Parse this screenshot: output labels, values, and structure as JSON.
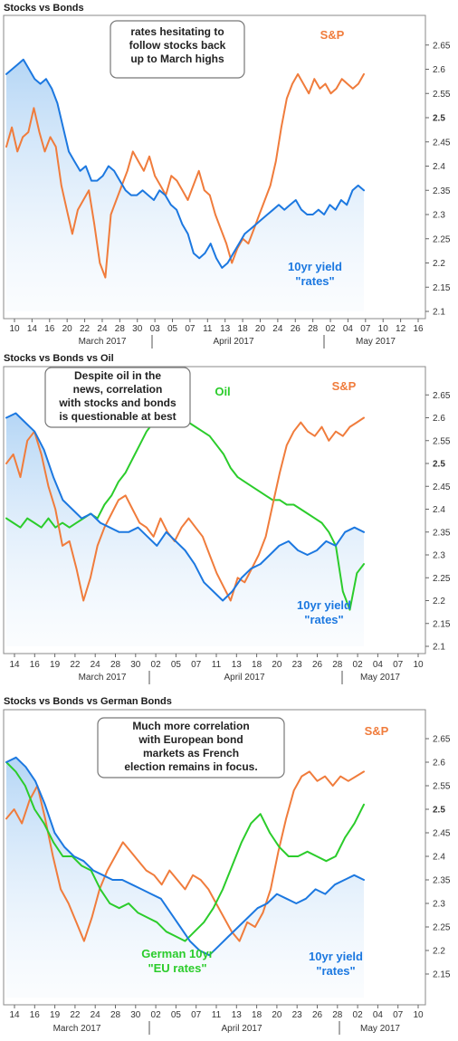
{
  "chart_data": [
    {
      "type": "line",
      "title": "Stocks vs Bonds",
      "ylim": [
        2.1,
        2.7
      ],
      "yticks": [
        "2.1",
        "2.15",
        "2.2",
        "2.25",
        "2.3",
        "2.35",
        "2.4",
        "2.45",
        "2.5",
        "2.55",
        "2.6",
        "2.65"
      ],
      "bold_ytick": "2.5",
      "xticks": [
        "10",
        "14",
        "16",
        "20",
        "22",
        "24",
        "28",
        "30",
        "03",
        "05",
        "07",
        "11",
        "13",
        "18",
        "20",
        "24",
        "26",
        "28",
        "02",
        "04",
        "07",
        "10",
        "12",
        "16"
      ],
      "months": [
        "March 2017",
        "April 2017",
        "May 2017"
      ],
      "annotation": [
        "rates hesitating to",
        "follow stocks back",
        "up to March highs"
      ],
      "series": [
        {
          "name": "S&P",
          "color": "#f07c3c",
          "label": [
            "S&P"
          ],
          "values": [
            2.44,
            2.48,
            2.43,
            2.46,
            2.47,
            2.52,
            2.47,
            2.43,
            2.46,
            2.44,
            2.36,
            2.31,
            2.26,
            2.31,
            2.33,
            2.35,
            2.28,
            2.2,
            2.17,
            2.3,
            2.33,
            2.36,
            2.39,
            2.43,
            2.41,
            2.39,
            2.42,
            2.38,
            2.36,
            2.34,
            2.38,
            2.37,
            2.35,
            2.33,
            2.36,
            2.39,
            2.35,
            2.34,
            2.3,
            2.27,
            2.24,
            2.2,
            2.23,
            2.25,
            2.24,
            2.27,
            2.3,
            2.33,
            2.36,
            2.41,
            2.48,
            2.54,
            2.57,
            2.59,
            2.57,
            2.55,
            2.58,
            2.56,
            2.57,
            2.55,
            2.56,
            2.58,
            2.57,
            2.56,
            2.57,
            2.59
          ]
        },
        {
          "name": "10yr yield",
          "color": "#1c78e0",
          "label": [
            "10yr yield",
            "\"rates\""
          ],
          "values": [
            2.59,
            2.6,
            2.61,
            2.62,
            2.6,
            2.58,
            2.57,
            2.58,
            2.56,
            2.53,
            2.48,
            2.43,
            2.41,
            2.39,
            2.4,
            2.37,
            2.37,
            2.38,
            2.4,
            2.39,
            2.37,
            2.35,
            2.34,
            2.34,
            2.35,
            2.34,
            2.33,
            2.35,
            2.34,
            2.32,
            2.31,
            2.28,
            2.26,
            2.22,
            2.21,
            2.22,
            2.24,
            2.21,
            2.19,
            2.2,
            2.22,
            2.24,
            2.26,
            2.27,
            2.28,
            2.29,
            2.3,
            2.31,
            2.32,
            2.31,
            2.32,
            2.33,
            2.31,
            2.3,
            2.3,
            2.31,
            2.3,
            2.32,
            2.31,
            2.33,
            2.32,
            2.35,
            2.36,
            2.35
          ]
        }
      ]
    },
    {
      "type": "line",
      "title": "Stocks vs Bonds vs Oil",
      "ylim": [
        2.1,
        2.7
      ],
      "yticks": [
        "2.1",
        "2.15",
        "2.2",
        "2.25",
        "2.3",
        "2.35",
        "2.4",
        "2.45",
        "2.5",
        "2.55",
        "2.6",
        "2.65"
      ],
      "bold_ytick": "2.5",
      "xticks": [
        "14",
        "16",
        "19",
        "22",
        "24",
        "28",
        "30",
        "02",
        "05",
        "07",
        "11",
        "13",
        "18",
        "20",
        "23",
        "26",
        "28",
        "02",
        "04",
        "07",
        "10"
      ],
      "months": [
        "March 2017",
        "April 2017",
        "May 2017"
      ],
      "annotation": [
        "Despite oil in the",
        "news, correlation",
        "with stocks and bonds",
        "is questionable at best"
      ],
      "series": [
        {
          "name": "Oil",
          "color": "#2bcc2b",
          "label": [
            "Oil"
          ],
          "values": [
            2.38,
            2.37,
            2.36,
            2.38,
            2.37,
            2.36,
            2.38,
            2.36,
            2.37,
            2.36,
            2.37,
            2.38,
            2.39,
            2.38,
            2.41,
            2.43,
            2.46,
            2.48,
            2.51,
            2.54,
            2.57,
            2.59,
            2.6,
            2.61,
            2.62,
            2.61,
            2.59,
            2.58,
            2.57,
            2.56,
            2.54,
            2.52,
            2.49,
            2.47,
            2.46,
            2.45,
            2.44,
            2.43,
            2.42,
            2.42,
            2.41,
            2.41,
            2.4,
            2.39,
            2.38,
            2.37,
            2.35,
            2.32,
            2.22,
            2.18,
            2.26,
            2.28
          ]
        },
        {
          "name": "S&P",
          "color": "#f07c3c",
          "label": [
            "S&P"
          ],
          "values": [
            2.5,
            2.52,
            2.47,
            2.55,
            2.57,
            2.52,
            2.45,
            2.4,
            2.32,
            2.33,
            2.27,
            2.2,
            2.25,
            2.32,
            2.36,
            2.39,
            2.42,
            2.43,
            2.4,
            2.37,
            2.36,
            2.34,
            2.38,
            2.35,
            2.33,
            2.36,
            2.38,
            2.36,
            2.34,
            2.3,
            2.26,
            2.23,
            2.2,
            2.25,
            2.24,
            2.27,
            2.3,
            2.34,
            2.41,
            2.48,
            2.54,
            2.57,
            2.59,
            2.57,
            2.56,
            2.58,
            2.55,
            2.57,
            2.56,
            2.58,
            2.59,
            2.6
          ]
        },
        {
          "name": "10yr yield",
          "color": "#1c78e0",
          "label": [
            "10yr yield",
            "\"rates\""
          ],
          "values": [
            2.6,
            2.61,
            2.59,
            2.57,
            2.53,
            2.47,
            2.42,
            2.4,
            2.38,
            2.39,
            2.37,
            2.36,
            2.35,
            2.35,
            2.36,
            2.34,
            2.32,
            2.35,
            2.33,
            2.31,
            2.28,
            2.24,
            2.22,
            2.2,
            2.22,
            2.25,
            2.27,
            2.28,
            2.3,
            2.32,
            2.33,
            2.31,
            2.3,
            2.31,
            2.33,
            2.32,
            2.35,
            2.36,
            2.35
          ]
        }
      ]
    },
    {
      "type": "line",
      "title": "Stocks vs Bonds vs German Bonds",
      "ylim": [
        2.1,
        2.7
      ],
      "yticks": [
        "2.15",
        "2.2",
        "2.25",
        "2.3",
        "2.35",
        "2.4",
        "2.45",
        "2.5",
        "2.55",
        "2.6",
        "2.65"
      ],
      "bold_ytick": "2.5",
      "xticks": [
        "14",
        "16",
        "19",
        "22",
        "24",
        "28",
        "30",
        "02",
        "05",
        "07",
        "11",
        "13",
        "18",
        "20",
        "23",
        "26",
        "28",
        "02",
        "04",
        "07",
        "10"
      ],
      "months": [
        "March 2017",
        "April 2017",
        "May 2017"
      ],
      "annotation": [
        "Much more correlation",
        "with European bond",
        "markets as French",
        "election remains in focus."
      ],
      "series": [
        {
          "name": "S&P",
          "color": "#f07c3c",
          "label": [
            "S&P"
          ],
          "values": [
            2.48,
            2.5,
            2.47,
            2.52,
            2.55,
            2.48,
            2.4,
            2.33,
            2.3,
            2.26,
            2.22,
            2.27,
            2.33,
            2.37,
            2.4,
            2.43,
            2.41,
            2.39,
            2.37,
            2.36,
            2.34,
            2.37,
            2.35,
            2.33,
            2.36,
            2.35,
            2.33,
            2.3,
            2.27,
            2.24,
            2.22,
            2.26,
            2.25,
            2.28,
            2.33,
            2.41,
            2.48,
            2.54,
            2.57,
            2.58,
            2.56,
            2.57,
            2.55,
            2.57,
            2.56,
            2.57,
            2.58
          ]
        },
        {
          "name": "German 10yr",
          "color": "#2bcc2b",
          "label": [
            "German 10yr",
            "\"EU rates\""
          ],
          "values": [
            2.6,
            2.58,
            2.55,
            2.5,
            2.47,
            2.43,
            2.4,
            2.4,
            2.38,
            2.37,
            2.33,
            2.3,
            2.29,
            2.3,
            2.28,
            2.27,
            2.26,
            2.24,
            2.23,
            2.22,
            2.24,
            2.26,
            2.29,
            2.33,
            2.38,
            2.43,
            2.47,
            2.49,
            2.45,
            2.42,
            2.4,
            2.4,
            2.41,
            2.4,
            2.39,
            2.4,
            2.44,
            2.47,
            2.51
          ]
        },
        {
          "name": "10yr yield",
          "color": "#1c78e0",
          "label": [
            "10yr yield",
            "\"rates\""
          ],
          "values": [
            2.6,
            2.61,
            2.59,
            2.56,
            2.51,
            2.45,
            2.42,
            2.4,
            2.39,
            2.37,
            2.36,
            2.35,
            2.35,
            2.34,
            2.33,
            2.32,
            2.31,
            2.28,
            2.25,
            2.22,
            2.2,
            2.19,
            2.21,
            2.23,
            2.25,
            2.27,
            2.29,
            2.3,
            2.32,
            2.31,
            2.3,
            2.31,
            2.33,
            2.32,
            2.34,
            2.35,
            2.36,
            2.35
          ]
        }
      ]
    }
  ]
}
